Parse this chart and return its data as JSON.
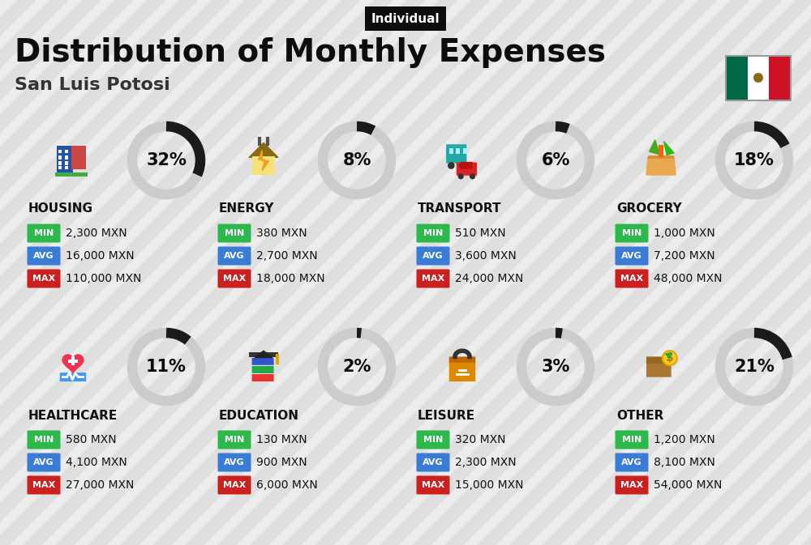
{
  "title": "Distribution of Monthly Expenses",
  "subtitle": "San Luis Potosi",
  "tag": "Individual",
  "bg_color": "#ececec",
  "stripe_color": "#d8d8d8",
  "categories": [
    {
      "name": "HOUSING",
      "pct": 32,
      "min": "2,300 MXN",
      "avg": "16,000 MXN",
      "max": "110,000 MXN",
      "row": 0,
      "col": 0
    },
    {
      "name": "ENERGY",
      "pct": 8,
      "min": "380 MXN",
      "avg": "2,700 MXN",
      "max": "18,000 MXN",
      "row": 0,
      "col": 1
    },
    {
      "name": "TRANSPORT",
      "pct": 6,
      "min": "510 MXN",
      "avg": "3,600 MXN",
      "max": "24,000 MXN",
      "row": 0,
      "col": 2
    },
    {
      "name": "GROCERY",
      "pct": 18,
      "min": "1,000 MXN",
      "avg": "7,200 MXN",
      "max": "48,000 MXN",
      "row": 0,
      "col": 3
    },
    {
      "name": "HEALTHCARE",
      "pct": 11,
      "min": "580 MXN",
      "avg": "4,100 MXN",
      "max": "27,000 MXN",
      "row": 1,
      "col": 0
    },
    {
      "name": "EDUCATION",
      "pct": 2,
      "min": "130 MXN",
      "avg": "900 MXN",
      "max": "6,000 MXN",
      "row": 1,
      "col": 1
    },
    {
      "name": "LEISURE",
      "pct": 3,
      "min": "320 MXN",
      "avg": "2,300 MXN",
      "max": "15,000 MXN",
      "row": 1,
      "col": 2
    },
    {
      "name": "OTHER",
      "pct": 21,
      "min": "1,200 MXN",
      "avg": "8,100 MXN",
      "max": "54,000 MXN",
      "row": 1,
      "col": 3
    }
  ],
  "min_color": "#2db84b",
  "avg_color": "#3a7bd5",
  "max_color": "#cc1f1f",
  "circle_fg": "#1a1a1a",
  "circle_bg": "#cccccc",
  "text_color": "#111111",
  "flag_green": "#006847",
  "flag_white": "#ffffff",
  "flag_red": "#ce1126"
}
